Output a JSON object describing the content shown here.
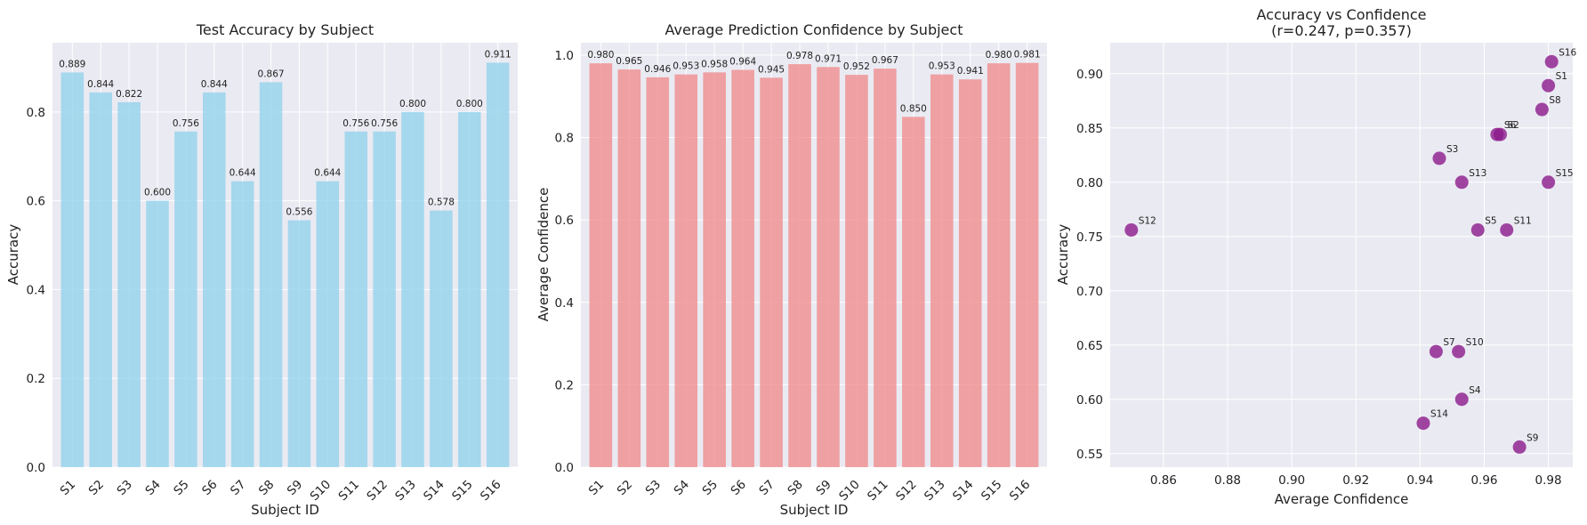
{
  "chart_data": [
    {
      "type": "bar",
      "title": "Test Accuracy by Subject",
      "xlabel": "Subject ID",
      "ylabel": "Accuracy",
      "categories": [
        "S1",
        "S2",
        "S3",
        "S4",
        "S5",
        "S6",
        "S7",
        "S8",
        "S9",
        "S10",
        "S11",
        "S12",
        "S13",
        "S14",
        "S15",
        "S16"
      ],
      "values": [
        0.889,
        0.844,
        0.822,
        0.6,
        0.756,
        0.844,
        0.644,
        0.867,
        0.556,
        0.644,
        0.756,
        0.756,
        0.8,
        0.578,
        0.8,
        0.911
      ],
      "value_labels": [
        "0.889",
        "0.844",
        "0.822",
        "0.600",
        "0.756",
        "0.844",
        "0.644",
        "0.867",
        "0.556",
        "0.644",
        "0.756",
        "0.756",
        "0.800",
        "0.578",
        "0.800",
        "0.911"
      ],
      "ylim": [
        0,
        0.956
      ],
      "yticks": [
        0.0,
        0.2,
        0.4,
        0.6,
        0.8
      ],
      "ytick_labels": [
        "0.0",
        "0.2",
        "0.4",
        "0.6",
        "0.8"
      ],
      "color": "#87ceeb",
      "grid": true
    },
    {
      "type": "bar",
      "title": "Average Prediction Confidence by Subject",
      "xlabel": "Subject ID",
      "ylabel": "Average Confidence",
      "categories": [
        "S1",
        "S2",
        "S3",
        "S4",
        "S5",
        "S6",
        "S7",
        "S8",
        "S9",
        "S10",
        "S11",
        "S12",
        "S13",
        "S14",
        "S15",
        "S16"
      ],
      "values": [
        0.98,
        0.965,
        0.946,
        0.953,
        0.958,
        0.964,
        0.945,
        0.978,
        0.971,
        0.952,
        0.967,
        0.85,
        0.953,
        0.941,
        0.98,
        0.981
      ],
      "value_labels": [
        "0.980",
        "0.965",
        "0.946",
        "0.953",
        "0.958",
        "0.964",
        "0.945",
        "0.978",
        "0.971",
        "0.952",
        "0.967",
        "0.850",
        "0.953",
        "0.941",
        "0.980",
        "0.981"
      ],
      "ylim": [
        0,
        1.03
      ],
      "yticks": [
        0.0,
        0.2,
        0.4,
        0.6,
        0.8,
        1.0
      ],
      "ytick_labels": [
        "0.0",
        "0.2",
        "0.4",
        "0.6",
        "0.8",
        "1.0"
      ],
      "color": "#f08080",
      "grid": true
    },
    {
      "type": "scatter",
      "title": "Accuracy vs Confidence",
      "subtitle": "(r=0.247, p=0.357)",
      "xlabel": "Average Confidence",
      "ylabel": "Accuracy",
      "points": [
        {
          "label": "S1",
          "x": 0.98,
          "y": 0.889
        },
        {
          "label": "S2",
          "x": 0.965,
          "y": 0.844
        },
        {
          "label": "S3",
          "x": 0.946,
          "y": 0.822
        },
        {
          "label": "S4",
          "x": 0.953,
          "y": 0.6
        },
        {
          "label": "S5",
          "x": 0.958,
          "y": 0.756
        },
        {
          "label": "S6",
          "x": 0.964,
          "y": 0.844
        },
        {
          "label": "S7",
          "x": 0.945,
          "y": 0.644
        },
        {
          "label": "S8",
          "x": 0.978,
          "y": 0.867
        },
        {
          "label": "S9",
          "x": 0.971,
          "y": 0.556
        },
        {
          "label": "S10",
          "x": 0.952,
          "y": 0.644
        },
        {
          "label": "S11",
          "x": 0.967,
          "y": 0.756
        },
        {
          "label": "S12",
          "x": 0.85,
          "y": 0.756
        },
        {
          "label": "S13",
          "x": 0.953,
          "y": 0.8
        },
        {
          "label": "S14",
          "x": 0.941,
          "y": 0.578
        },
        {
          "label": "S15",
          "x": 0.98,
          "y": 0.8
        },
        {
          "label": "S16",
          "x": 0.981,
          "y": 0.911
        }
      ],
      "xlim": [
        0.8434,
        0.9876
      ],
      "ylim": [
        0.5375,
        0.9285
      ],
      "xticks": [
        0.86,
        0.88,
        0.9,
        0.92,
        0.94,
        0.96,
        0.98
      ],
      "xtick_labels": [
        "0.86",
        "0.88",
        "0.90",
        "0.92",
        "0.94",
        "0.96",
        "0.98"
      ],
      "yticks": [
        0.55,
        0.6,
        0.65,
        0.7,
        0.75,
        0.8,
        0.85,
        0.9
      ],
      "ytick_labels": [
        "0.55",
        "0.60",
        "0.65",
        "0.70",
        "0.75",
        "0.80",
        "0.85",
        "0.90"
      ],
      "color": "#8b1a8b",
      "grid": true
    }
  ],
  "style": {
    "axes_bg": "#eaeaf2",
    "grid_color": "#ffffff",
    "text_color": "#222222"
  }
}
